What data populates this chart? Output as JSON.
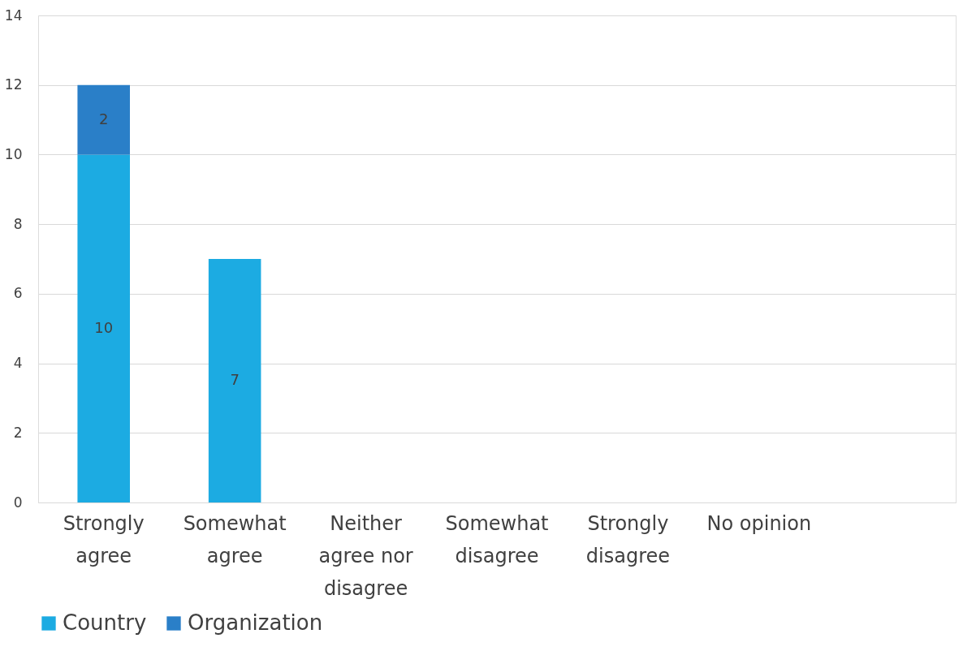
{
  "chart_data": {
    "type": "bar",
    "stacked": true,
    "categories": [
      "Strongly agree",
      "Somewhat agree",
      "Neither agree nor disagree",
      "Somewhat disagree",
      "Strongly disagree",
      "No opinion",
      null
    ],
    "series": [
      {
        "name": "Country",
        "color": "#1cabe2",
        "values": [
          10,
          7,
          null,
          null,
          null,
          null,
          null
        ]
      },
      {
        "name": "Organization",
        "color": "#2a7fc8",
        "values": [
          2,
          null,
          null,
          null,
          null,
          null,
          null
        ]
      }
    ],
    "ylim": [
      0,
      14
    ],
    "yticks": [
      0,
      2,
      4,
      6,
      8,
      10,
      12,
      14
    ],
    "grid": "y",
    "legend": "bottom",
    "data_labels": true
  }
}
